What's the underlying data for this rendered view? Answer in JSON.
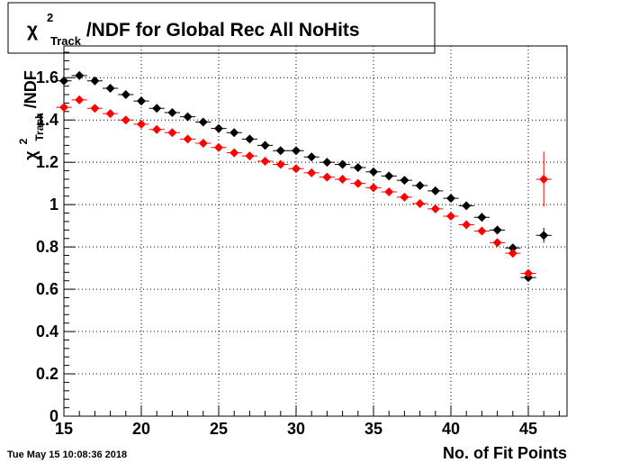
{
  "chart_data": {
    "type": "scatter",
    "title": {
      "symbol": "χ",
      "superscript": "2",
      "subscript": "Track",
      "rest": "/NDF for Global Rec All NoHits"
    },
    "xlabel": "No. of Fit Points",
    "ylabel": {
      "symbol": "χ",
      "superscript": "2",
      "subscript": "Track",
      "rest": "/NDF"
    },
    "xlim": [
      15,
      47.5
    ],
    "ylim": [
      0,
      1.75
    ],
    "x_ticks": [
      15,
      20,
      25,
      30,
      35,
      40,
      45
    ],
    "x_tick_labels": [
      "15",
      "20",
      "25",
      "30",
      "35",
      "40",
      "45"
    ],
    "y_ticks": [
      0,
      0.2,
      0.4,
      0.6,
      0.8,
      1,
      1.2,
      1.4,
      1.6
    ],
    "y_tick_labels": [
      "0",
      "0.2",
      "0.4",
      "0.6",
      "0.8",
      "1",
      "1.2",
      "1.4",
      "1.6"
    ],
    "grid": true,
    "timestamp": "Tue May 15 10:08:36 2018",
    "series": [
      {
        "color": "#000000",
        "x": [
          15,
          16,
          17,
          18,
          19,
          20,
          21,
          22,
          23,
          24,
          25,
          26,
          27,
          28,
          29,
          30,
          31,
          32,
          33,
          34,
          35,
          36,
          37,
          38,
          39,
          40,
          41,
          42,
          43,
          44,
          45,
          46
        ],
        "y": [
          1.585,
          1.61,
          1.585,
          1.55,
          1.52,
          1.49,
          1.455,
          1.435,
          1.415,
          1.39,
          1.36,
          1.34,
          1.31,
          1.28,
          1.255,
          1.255,
          1.225,
          1.2,
          1.19,
          1.175,
          1.155,
          1.135,
          1.115,
          1.09,
          1.065,
          1.03,
          0.995,
          0.94,
          0.88,
          0.795,
          0.655,
          0.855
        ],
        "yerr": [
          0.01,
          0.008,
          0.008,
          0.008,
          0.008,
          0.008,
          0.008,
          0.008,
          0.008,
          0.008,
          0.008,
          0.008,
          0.008,
          0.008,
          0.008,
          0.008,
          0.008,
          0.008,
          0.008,
          0.008,
          0.008,
          0.008,
          0.008,
          0.008,
          0.008,
          0.008,
          0.008,
          0.008,
          0.01,
          0.015,
          0.015,
          0.035
        ]
      },
      {
        "color": "#ff0000",
        "x": [
          15,
          16,
          17,
          18,
          19,
          20,
          21,
          22,
          23,
          24,
          25,
          26,
          27,
          28,
          29,
          30,
          31,
          32,
          33,
          34,
          35,
          36,
          37,
          38,
          39,
          40,
          41,
          42,
          43,
          44,
          45,
          46
        ],
        "y": [
          1.46,
          1.495,
          1.455,
          1.43,
          1.4,
          1.38,
          1.355,
          1.34,
          1.31,
          1.29,
          1.27,
          1.245,
          1.23,
          1.205,
          1.19,
          1.17,
          1.15,
          1.13,
          1.12,
          1.1,
          1.08,
          1.06,
          1.035,
          1.005,
          0.98,
          0.945,
          0.905,
          0.875,
          0.82,
          0.77,
          0.675,
          1.12
        ],
        "yerr": [
          0.008,
          0.008,
          0.008,
          0.008,
          0.008,
          0.008,
          0.008,
          0.008,
          0.008,
          0.008,
          0.008,
          0.008,
          0.008,
          0.008,
          0.008,
          0.008,
          0.008,
          0.008,
          0.008,
          0.008,
          0.008,
          0.008,
          0.008,
          0.008,
          0.008,
          0.008,
          0.008,
          0.008,
          0.01,
          0.012,
          0.015,
          0.13
        ]
      }
    ]
  }
}
